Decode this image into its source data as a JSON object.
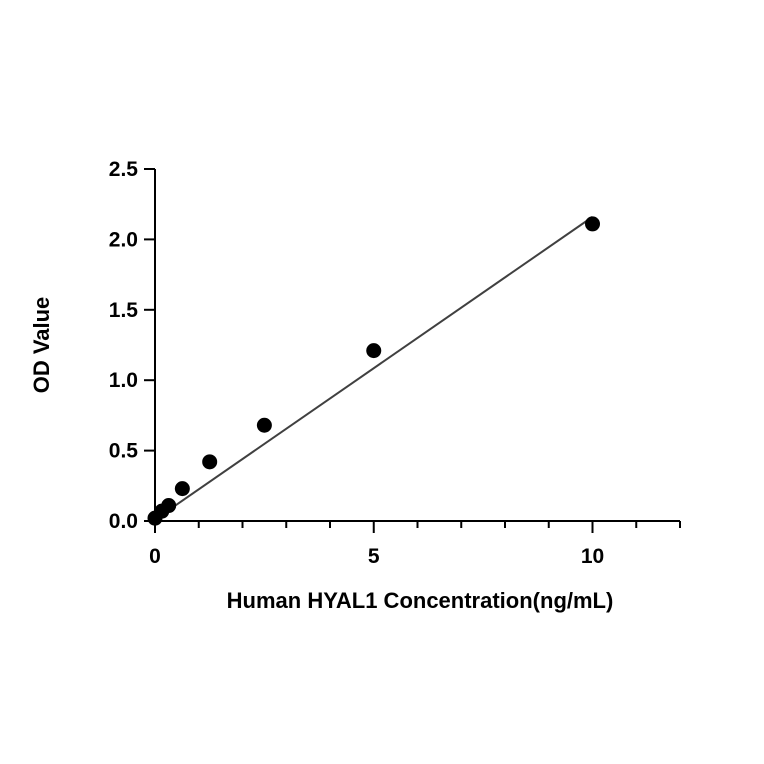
{
  "chart_data": {
    "type": "scatter",
    "xlabel": "Human HYAL1 Concentration(ng/mL)",
    "ylabel": "OD Value",
    "xlim": [
      0,
      12
    ],
    "ylim": [
      0,
      2.5
    ],
    "x_ticks": [
      0,
      5,
      10
    ],
    "x_tick_labels": [
      "0",
      "5",
      "10"
    ],
    "x_minor_ticks": [
      1,
      2,
      3,
      4,
      6,
      7,
      8,
      9,
      11,
      12
    ],
    "y_ticks": [
      0,
      0.5,
      1,
      1.5,
      2,
      2.5
    ],
    "y_tick_labels": [
      "0.0",
      "0.5",
      "1.0",
      "1.5",
      "2.0",
      "2.5"
    ],
    "grid": false,
    "series": [
      {
        "x": [
          0,
          0.156,
          0.313,
          0.625,
          1.25,
          2.5,
          5,
          10
        ],
        "y": [
          0.02,
          0.07,
          0.11,
          0.23,
          0.42,
          0.68,
          1.21,
          2.11
        ]
      }
    ],
    "fit_line": {
      "x": [
        0,
        10
      ],
      "y": [
        0.01,
        2.16
      ]
    },
    "colors": {
      "marker": "#000000",
      "line": "#404040",
      "axis": "#000000"
    }
  }
}
